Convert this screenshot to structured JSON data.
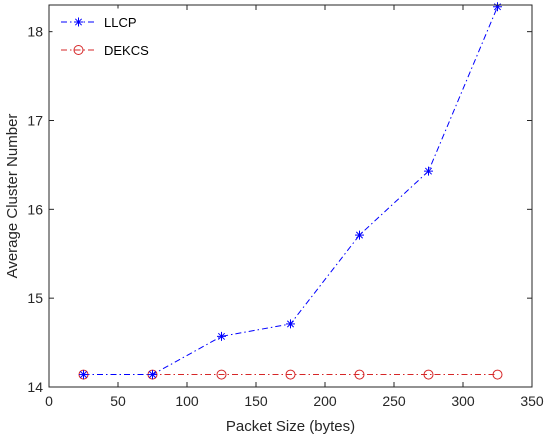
{
  "chart_data": {
    "type": "line",
    "title": "",
    "xlabel": "Packet Size (bytes)",
    "ylabel": "Average Cluster Number",
    "xlim": [
      0,
      350
    ],
    "ylim": [
      14,
      18.3
    ],
    "xticks": [
      0,
      50,
      100,
      150,
      200,
      250,
      300,
      350
    ],
    "yticks": [
      14,
      15,
      16,
      17,
      18
    ],
    "grid": false,
    "legend_position": "top-left",
    "series": [
      {
        "name": "LLCP",
        "color": "#0000ff",
        "marker": "asterisk",
        "line_style": "dash-dot",
        "x": [
          25,
          75,
          125,
          175,
          225,
          275,
          325
        ],
        "y": [
          14.14,
          14.14,
          14.57,
          14.71,
          15.71,
          16.43,
          18.28
        ]
      },
      {
        "name": "DEKCS",
        "color": "#d62728",
        "marker": "circle",
        "line_style": "dash-dot",
        "x": [
          25,
          75,
          125,
          175,
          225,
          275,
          325
        ],
        "y": [
          14.14,
          14.14,
          14.14,
          14.14,
          14.14,
          14.14,
          14.14
        ]
      }
    ]
  }
}
